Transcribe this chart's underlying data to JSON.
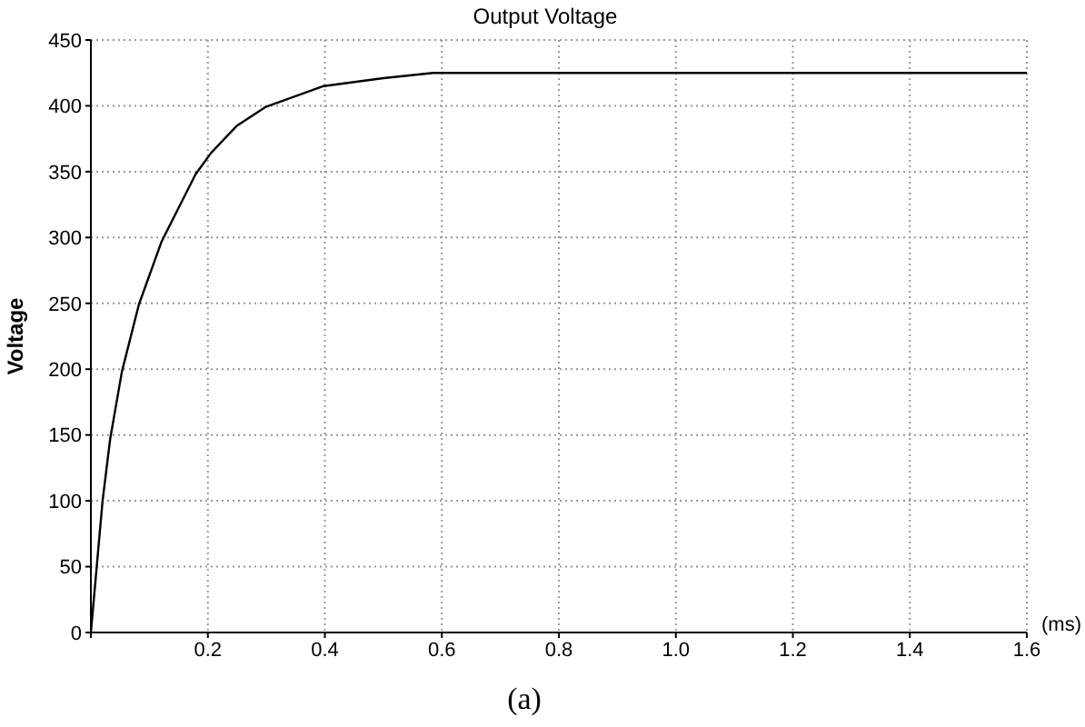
{
  "chart_data": {
    "type": "line",
    "title": "Output Voltage",
    "ylabel": "Voltage",
    "xlabel": "(ms)",
    "annotations": [
      "(a)"
    ],
    "x": [
      0,
      0.01,
      0.02,
      0.033,
      0.053,
      0.082,
      0.121,
      0.179,
      0.205,
      0.25,
      0.298,
      0.398,
      0.5,
      0.585,
      0.8,
      1.2,
      1.6
    ],
    "series": [
      {
        "color": "#000000",
        "values": [
          0,
          50,
          100,
          147,
          198,
          249,
          297,
          348,
          364,
          385,
          399,
          415,
          421,
          425,
          425,
          425,
          425
        ]
      }
    ],
    "xlim": [
      0,
      1.6
    ],
    "xticks": [
      {
        "value": 0,
        "label": null
      },
      0.2,
      0.4,
      0.6,
      0.8,
      {
        "value": 1,
        "label": "1.0"
      },
      1.2,
      1.4,
      1.6
    ],
    "ylim": [
      0,
      450
    ],
    "yticks": [
      0,
      50,
      100,
      150,
      200,
      250,
      300,
      350,
      400,
      450
    ],
    "grid": true,
    "line_style": "solid",
    "marker": "none"
  }
}
